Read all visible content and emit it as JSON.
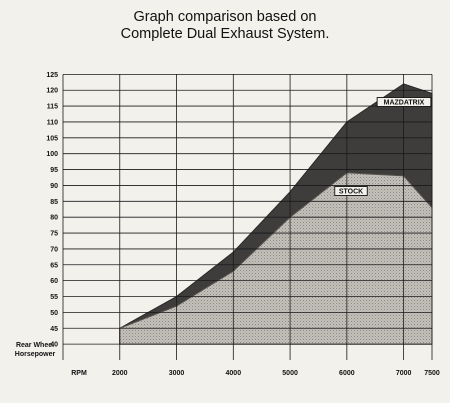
{
  "chart_data": {
    "type": "area",
    "title": "Graph comparison based on",
    "subtitle": "Complete Dual Exhaust System.",
    "xlabel": "RPM",
    "ylabel": "Rear Wheel Horsepower",
    "ylabel_lines": [
      "Rear Wheel",
      "Horsepower"
    ],
    "x_ticks": [
      2000,
      3000,
      4000,
      5000,
      6000,
      7000,
      7500
    ],
    "y_ticks": [
      40,
      45,
      50,
      55,
      60,
      65,
      70,
      75,
      80,
      85,
      90,
      95,
      100,
      105,
      110,
      115,
      120,
      125
    ],
    "xlim": [
      1000,
      7500
    ],
    "ylim": [
      35,
      127
    ],
    "grid": true,
    "series": [
      {
        "name": "MAZDATRIX",
        "x": [
          2000,
          3000,
          4000,
          5000,
          6000,
          7000,
          7500
        ],
        "y": [
          45,
          55,
          69,
          88,
          110,
          122,
          119
        ]
      },
      {
        "name": "STOCK",
        "x": [
          2000,
          3000,
          4000,
          5000,
          6000,
          7000,
          7500
        ],
        "y": [
          45,
          52,
          63,
          80,
          94,
          93,
          83
        ]
      }
    ],
    "colors": {
      "mazdatrix": "#3f3c3c",
      "stock": "#bab6b1",
      "grid": "#1a1a1a",
      "background": "#f3f1ec"
    }
  }
}
